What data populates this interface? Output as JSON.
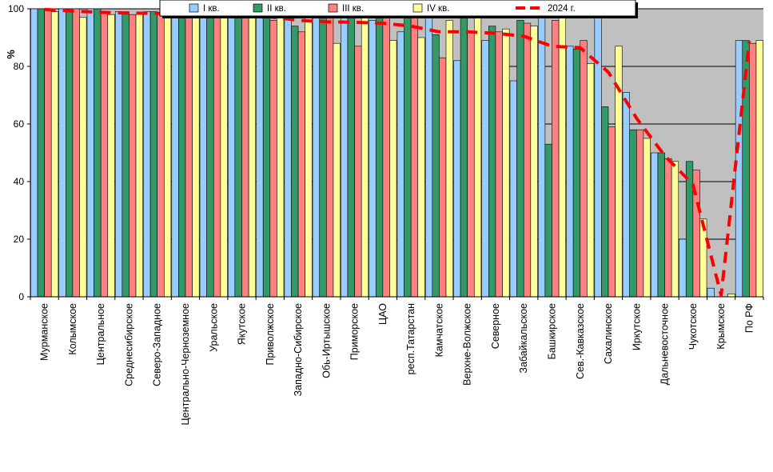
{
  "chart_data": {
    "type": "bar",
    "ylabel": "%",
    "ylim": [
      0,
      100
    ],
    "yticks": [
      "0",
      "20",
      "40",
      "60",
      "80",
      "100"
    ],
    "grid": true,
    "legend_position": "top",
    "categories": [
      "Мурманское",
      "Колымское",
      "Центральное",
      "Среднесибирское",
      "Северо-Западное",
      "Центрально-Черноземное",
      "Уральское",
      "Якутское",
      "Приволжское",
      "Западно-Сибирское",
      "Обь-Иртышское",
      "Приморское",
      "ЦАО",
      "респ.Татарстан",
      "Камчатское",
      "Верхне-Волжское",
      "Северное",
      "Забайкальское",
      "Башкирское",
      "Сев.-Кавказское",
      "Сахалинское",
      "Иркутское",
      "Дальневосточное",
      "Чукотское",
      "Крымское",
      "По РФ"
    ],
    "series": [
      {
        "name": "I кв.",
        "type": "bar",
        "color": "#99ccff",
        "values": [
          100,
          100,
          100,
          99,
          99,
          99,
          99,
          99,
          99,
          98,
          100,
          99,
          96,
          92,
          100,
          82,
          89,
          75,
          100,
          87,
          98,
          71,
          50,
          20,
          3,
          89
        ]
      },
      {
        "name": "II кв.",
        "type": "bar",
        "color": "#339966",
        "values": [
          100,
          100,
          100,
          99,
          99,
          99,
          97,
          99,
          99,
          94,
          100,
          97,
          97,
          97,
          91,
          97,
          94,
          96,
          53,
          86,
          66,
          58,
          50,
          47,
          0,
          89
        ]
      },
      {
        "name": "III кв.",
        "type": "bar",
        "color": "#ff8080",
        "values": [
          100,
          100,
          99,
          98,
          98,
          98,
          98,
          98,
          96,
          92,
          100,
          87,
          98,
          98,
          83,
          92,
          92,
          95,
          96,
          89,
          59,
          58,
          48,
          44,
          0,
          88
        ]
      },
      {
        "name": "IV кв.",
        "type": "bar",
        "color": "#ffff99",
        "values": [
          99,
          97,
          98,
          98,
          98,
          97,
          98,
          98,
          98,
          100,
          88,
          98,
          89,
          90,
          96,
          97,
          93,
          94,
          98,
          81,
          87,
          55,
          47,
          27,
          1,
          89
        ]
      },
      {
        "name": "2024 г.",
        "type": "line",
        "color": "#ff0000",
        "values": [
          99.8,
          99.2,
          98.8,
          98.5,
          98.4,
          98.2,
          97.9,
          97.6,
          97.2,
          96.0,
          95.5,
          95.3,
          95.0,
          94.0,
          92.0,
          92.0,
          91.5,
          90.5,
          87.0,
          86.5,
          78.0,
          62.0,
          49.0,
          39.0,
          0.5,
          88.8
        ]
      }
    ]
  }
}
